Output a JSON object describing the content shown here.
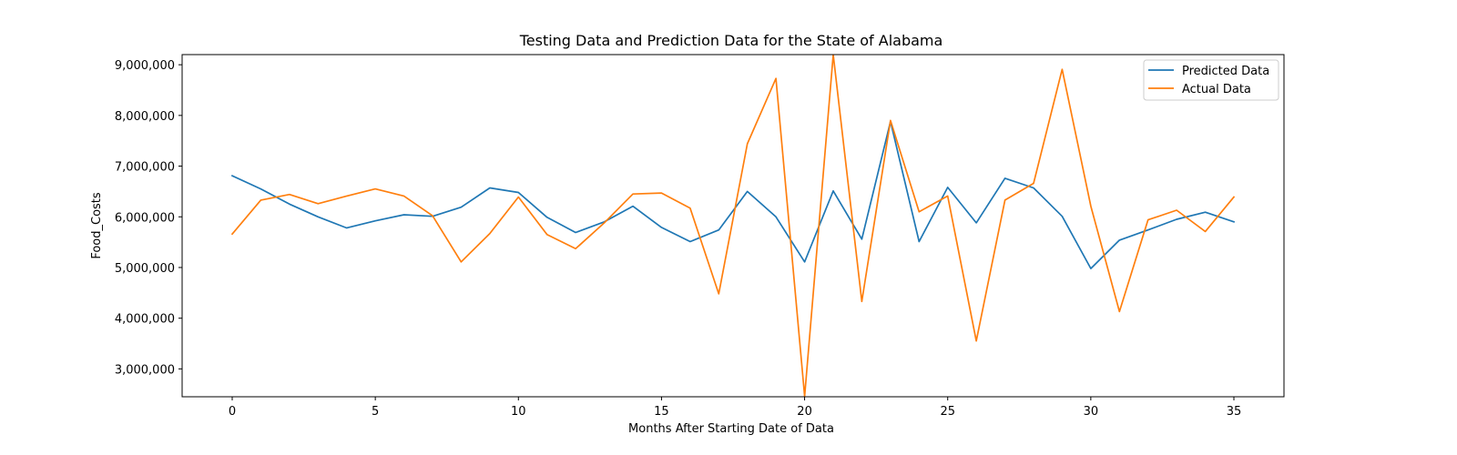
{
  "chart_data": {
    "type": "line",
    "title": "Testing Data and Prediction Data for the State of Alabama",
    "xlabel": "Months After Starting Date of Data",
    "ylabel": "Food_Costs",
    "xlim": [
      -1.75,
      36.75
    ],
    "ylim": [
      2450000,
      9200000
    ],
    "xticks": [
      0,
      5,
      10,
      15,
      20,
      25,
      30,
      35
    ],
    "xtick_labels": [
      "0",
      "5",
      "10",
      "15",
      "20",
      "25",
      "30",
      "35"
    ],
    "yticks": [
      3000000,
      4000000,
      5000000,
      6000000,
      7000000,
      8000000,
      9000000
    ],
    "ytick_labels": [
      "3,000,000",
      "4,000,000",
      "5,000,000",
      "6,000,000",
      "7,000,000",
      "8,000,000",
      "9,000,000"
    ],
    "grid": false,
    "legend_position": "top-right",
    "x": [
      0,
      1,
      2,
      3,
      4,
      5,
      6,
      7,
      8,
      9,
      10,
      11,
      12,
      13,
      14,
      15,
      16,
      17,
      18,
      19,
      20,
      21,
      22,
      23,
      24,
      25,
      26,
      27,
      28,
      29,
      30,
      31,
      32,
      33,
      34,
      35
    ],
    "series": [
      {
        "name": "Predicted Data",
        "color": "#1f77b4",
        "values": [
          6810000,
          6550000,
          6250000,
          6000000,
          5780000,
          5920000,
          6040000,
          6010000,
          6190000,
          6570000,
          6480000,
          5990000,
          5690000,
          5900000,
          6210000,
          5790000,
          5510000,
          5740000,
          6500000,
          6000000,
          5110000,
          6510000,
          5560000,
          7880000,
          5510000,
          6580000,
          5880000,
          6760000,
          6570000,
          6010000,
          4980000,
          5540000,
          5740000,
          5950000,
          6090000,
          5900000
        ]
      },
      {
        "name": "Actual Data",
        "color": "#ff7f0e",
        "values": [
          5660000,
          6330000,
          6440000,
          6260000,
          6410000,
          6550000,
          6410000,
          6020000,
          5110000,
          5670000,
          6390000,
          5650000,
          5370000,
          5880000,
          6450000,
          6470000,
          6170000,
          4480000,
          7440000,
          8730000,
          2460000,
          9200000,
          4330000,
          7900000,
          6100000,
          6410000,
          3550000,
          6330000,
          6660000,
          8910000,
          6210000,
          4130000,
          5940000,
          6130000,
          5710000,
          6390000
        ]
      }
    ]
  }
}
